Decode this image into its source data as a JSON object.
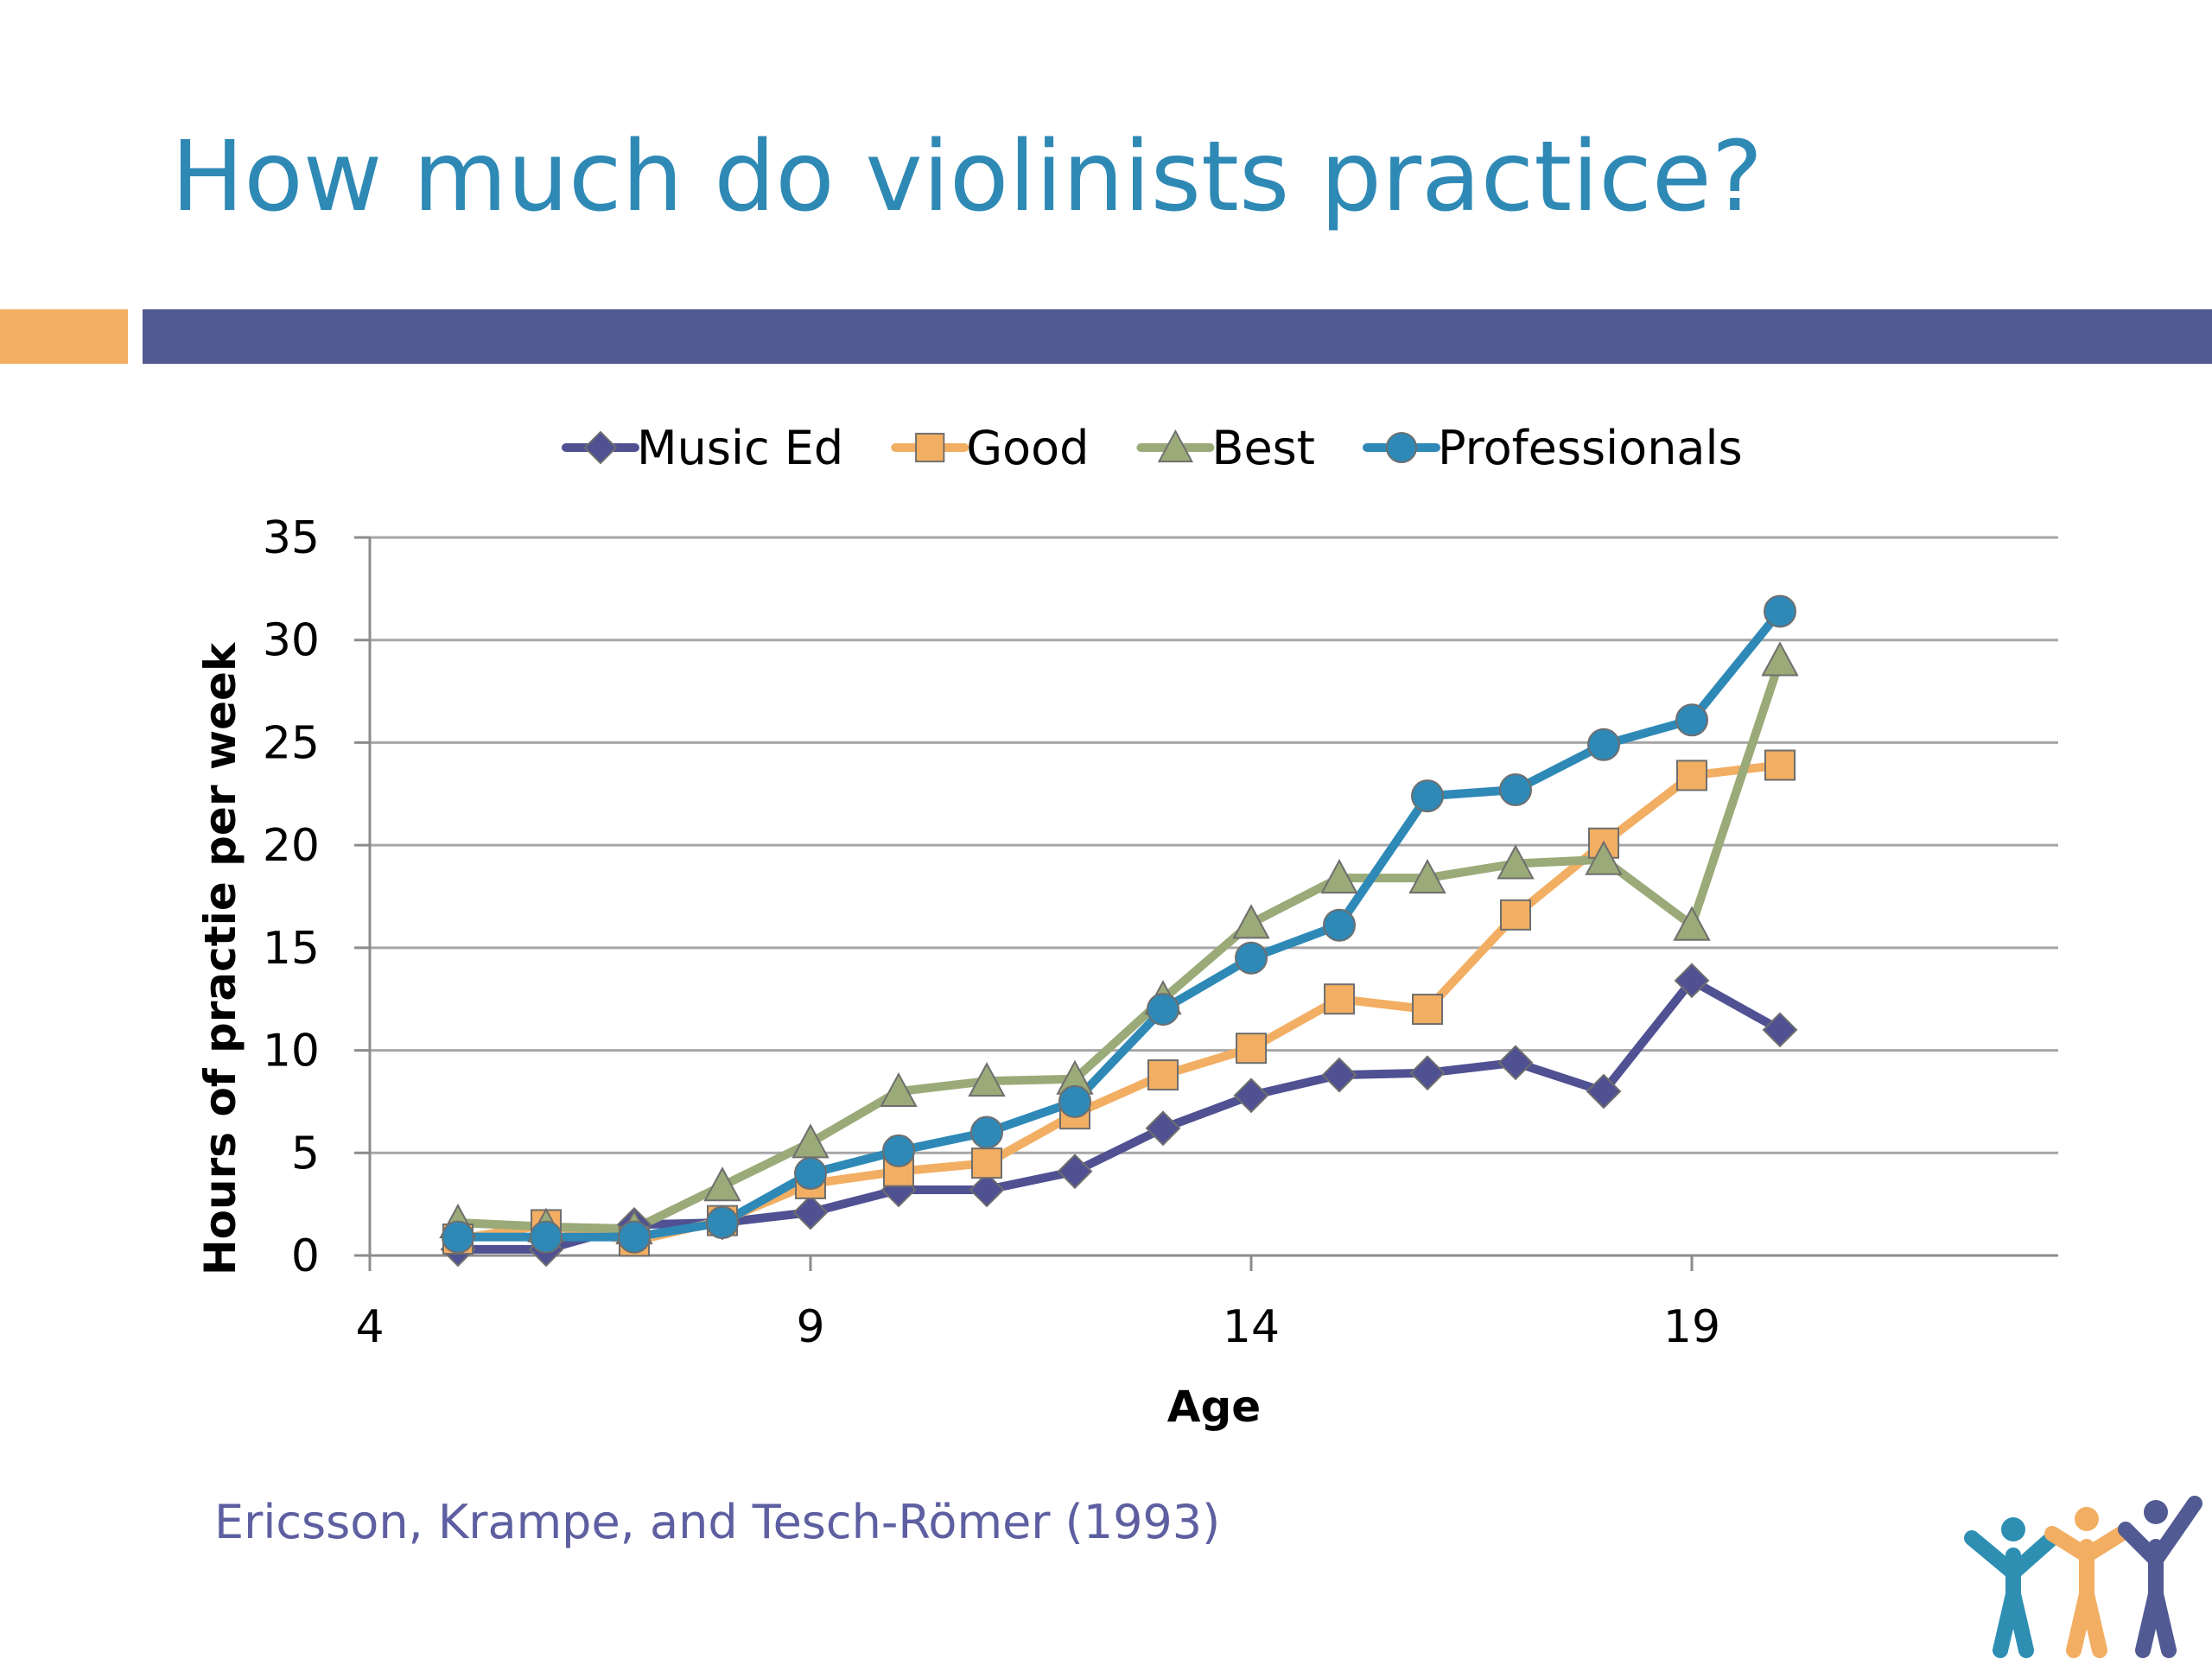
{
  "slide": {
    "title": "How much do violinists practice?",
    "citation": "Ericsson, Krampe, and Tesch-Römer (1993)"
  },
  "colors": {
    "title": "#2f89b5",
    "accent_orange": "#f2ae62",
    "accent_blue_bar": "#525a93",
    "citation": "#5d5fa1"
  },
  "chart_data": {
    "type": "line",
    "xlabel": "Age",
    "ylabel": "Hours of practie per week",
    "xlim": [
      4,
      21
    ],
    "ylim": [
      0,
      35
    ],
    "xticks": [
      4,
      9,
      14,
      19
    ],
    "yticks": [
      0,
      5,
      10,
      15,
      20,
      25,
      30,
      35
    ],
    "grid": "horizontal",
    "legend": "top",
    "x": [
      5,
      6,
      7,
      8,
      9,
      10,
      11,
      12,
      13,
      14,
      15,
      16,
      17,
      18,
      19,
      20
    ],
    "series": [
      {
        "name": "Music Ed",
        "marker": "diamond",
        "color": "#4f5192",
        "values": [
          0.3,
          0.3,
          1.5,
          1.6,
          2.1,
          3.2,
          3.2,
          4.1,
          6.2,
          7.8,
          8.8,
          8.9,
          9.4,
          8.0,
          13.4,
          11.0
        ]
      },
      {
        "name": "Good",
        "marker": "square",
        "color": "#f2ae62",
        "values": [
          0.8,
          1.5,
          0.7,
          1.7,
          3.5,
          4.1,
          4.5,
          6.9,
          8.8,
          10.1,
          12.5,
          12.0,
          16.6,
          20.1,
          23.4,
          23.9
        ]
      },
      {
        "name": "Best",
        "marker": "triangle",
        "color": "#9aaa78",
        "values": [
          1.6,
          1.4,
          1.3,
          3.4,
          5.5,
          8.0,
          8.5,
          8.6,
          12.5,
          16.2,
          18.4,
          18.4,
          19.1,
          19.3,
          16.1,
          29.0
        ]
      },
      {
        "name": "Professionals",
        "marker": "circle",
        "color": "#2e89b7",
        "values": [
          0.9,
          0.9,
          0.9,
          1.6,
          4.0,
          5.1,
          6.0,
          7.5,
          12.0,
          14.5,
          16.1,
          22.4,
          22.7,
          24.9,
          26.1,
          31.4
        ]
      }
    ]
  }
}
